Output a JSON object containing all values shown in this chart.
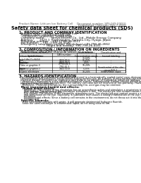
{
  "background_color": "#ffffff",
  "header_left": "Product Name: Lithium Ion Battery Cell",
  "header_right_line1": "Document number: SPS-049-00010",
  "header_right_line2": "Established / Revision: Dec.7.2010",
  "title": "Safety data sheet for chemical products (SDS)",
  "section1_title": "1. PRODUCT AND COMPANY IDENTIFICATION",
  "section1_items": [
    "  Product name: Lithium Ion Battery Cell",
    "  Product code: Cylindrical-type cell",
    "    04166500, 04166500, 04166504A",
    "  Company name:       Sanyo Electric Co., Ltd., Mobile Energy Company",
    "  Address:       2023-1  Kamishinden, Sumoto-City, Hyogo, Japan",
    "  Telephone number:    +81-(799)-26-4111",
    "  Fax number:    +81-(799)-26-4120",
    "  Emergency telephone number (Weekdays) +81-799-26-2662",
    "                               (Night and holiday) +81-799-26-4101"
  ],
  "section2_title": "2. COMPOSITION / INFORMATION ON INGREDIENTS",
  "section2_sub": "  Substance or preparation: Preparation",
  "section2_sub2": "  Information about the chemical nature of product:",
  "table_headers": [
    "Common chemical name /\nSpecies name",
    "CAS number",
    "Concentration /\nConcentration range",
    "Classification and\nhazard labeling"
  ],
  "table_rows": [
    [
      "Lithium oxide/Lithium\noxide/LiMn2Co(NiO4)",
      "-",
      "30-60%",
      ""
    ],
    [
      "Iron",
      "7439-89-6",
      "15-25%",
      "-"
    ],
    [
      "Aluminum",
      "7429-90-5",
      "2-6%",
      "-"
    ],
    [
      "Graphite\n(Flake or graphite-I)\n(Artificial graphite-I)",
      "77769-41-5\n7782-42-5",
      "10-20%",
      "-"
    ],
    [
      "Copper",
      "7440-50-8",
      "5-15%",
      "Sensitization of the skin\ngroup R43.2"
    ],
    [
      "Organic electrolyte",
      "-",
      "10-20%",
      "Inflammable liquid"
    ]
  ],
  "section3_title": "3. HAZARDS IDENTIFICATION",
  "section3_lines": [
    "  For this battery cell, chemical materials are stored in a hermetically sealed metal case, designed to withstand",
    "  temperatures and pressures encountered during normal use. As a result, during normal use, there is no",
    "  physical danger of ignition or explosion and there is no danger of hazardous materials leakage.",
    "    However, if exposed to a fire added mechanical shocks, decomposed, broken electro whose key may use,",
    "  the gas release cannot be operated. The battery cell case will be involved of fire-pathway, Hazardous",
    "  materials may be released.",
    "    Moreover, if heated strongly by the surrounding fire, acid gas may be emitted."
  ],
  "section3_bullet1": "  Most important hazard and effects:",
  "section3_human": "    Human health effects:",
  "section3_inhalation": "      Inhalation: The release of the electrolyte has an anaesthesia action and stimulates a respiratory tract.",
  "section3_skin_lines": [
    "      Skin contact: The release of the electrolyte stimulates a skin. The electrolyte skin contact causes a",
    "      sore and stimulation on the skin."
  ],
  "section3_eye_lines": [
    "      Eye contact: The release of the electrolyte stimulates eyes. The electrolyte eye contact causes a sore",
    "      and stimulation on the eye. Especially, a substance that causes a strong inflammation of the eye is",
    "      contained."
  ],
  "section3_env_lines": [
    "      Environmental effects: Since a battery cell remains in the environment, do not throw out it into the",
    "      environment."
  ],
  "section3_bullet2": "  Specific hazards:",
  "section3_specific_lines": [
    "    If the electrolyte contacts with water, it will generate detrimental hydrogen fluoride.",
    "    Since the used electrolyte is inflammable liquid, do not bring close to fire."
  ]
}
